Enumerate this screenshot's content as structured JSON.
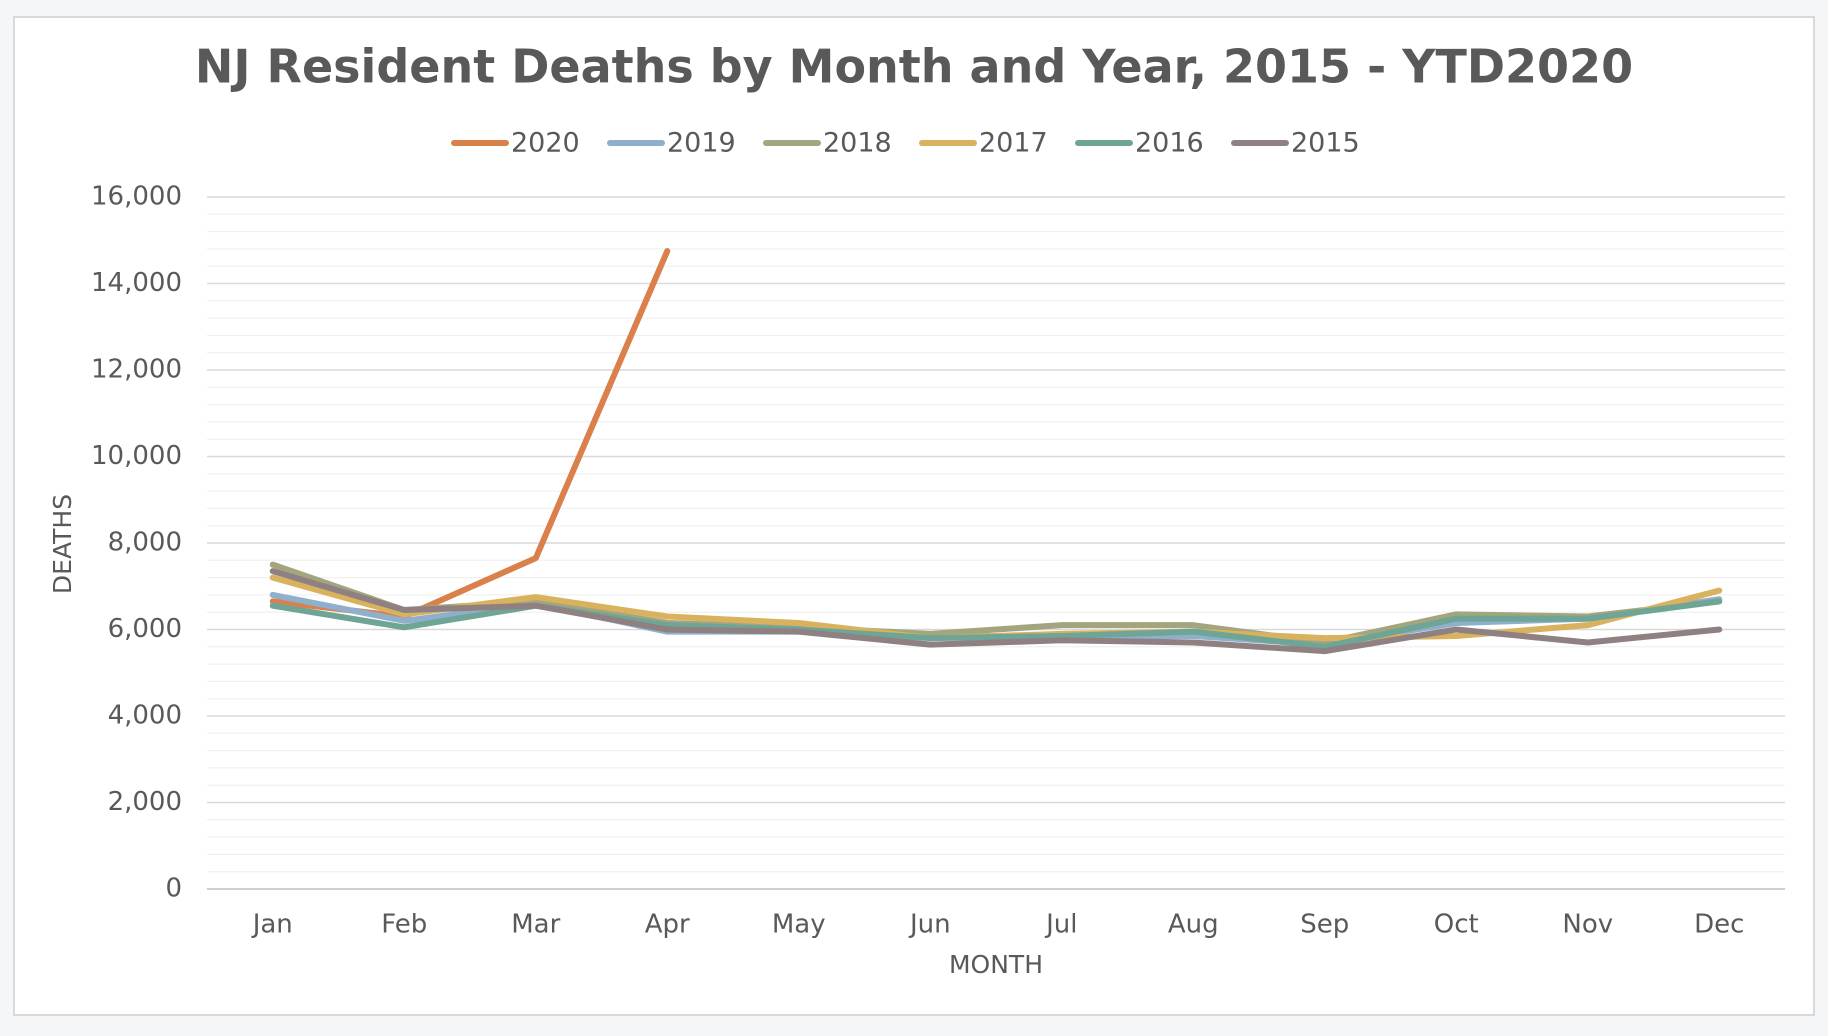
{
  "chart_data": {
    "type": "line",
    "title": "NJ Resident Deaths by Month and Year, 2015 - YTD2020",
    "x_label": "MONTH",
    "y_label": "DEATHS",
    "categories": [
      "Jan",
      "Feb",
      "Mar",
      "Apr",
      "May",
      "Jun",
      "Jul",
      "Aug",
      "Sep",
      "Oct",
      "Nov",
      "Dec"
    ],
    "series": [
      {
        "name": "2020",
        "color": "#d9804b",
        "values": [
          6650,
          6300,
          7650,
          14750,
          null,
          null,
          null,
          null,
          null,
          null,
          null,
          null
        ]
      },
      {
        "name": "2019",
        "color": "#8fb0cc",
        "values": [
          6800,
          6200,
          6600,
          5950,
          5950,
          5850,
          5850,
          5850,
          5650,
          6150,
          6250,
          6700
        ]
      },
      {
        "name": "2018",
        "color": "#a2a57e",
        "values": [
          7500,
          6450,
          6650,
          6150,
          6050,
          5900,
          6100,
          6100,
          5700,
          6350,
          6300,
          6650
        ]
      },
      {
        "name": "2017",
        "color": "#d9b25f",
        "values": [
          7200,
          6350,
          6750,
          6300,
          6150,
          5800,
          5900,
          5950,
          5800,
          5850,
          6100,
          6900
        ]
      },
      {
        "name": "2016",
        "color": "#6fa596",
        "values": [
          6550,
          6050,
          6550,
          6100,
          6000,
          5800,
          5850,
          5950,
          5600,
          6250,
          6250,
          6650
        ]
      },
      {
        "name": "2015",
        "color": "#8f8182",
        "values": [
          7350,
          6450,
          6550,
          6000,
          5950,
          5650,
          5750,
          5700,
          5500,
          6000,
          5700,
          6000
        ]
      }
    ],
    "ylim": [
      0,
      16000
    ],
    "yticks": [
      0,
      {
        "value": 2000,
        "label": "2,000"
      },
      {
        "value": 4000,
        "label": "4,000"
      },
      {
        "value": 6000,
        "label": "6,000"
      },
      {
        "value": 8000,
        "label": "8,000"
      },
      {
        "value": 10000,
        "label": "10,000"
      },
      {
        "value": 12000,
        "label": "12,000"
      },
      {
        "value": 14000,
        "label": "14,000"
      },
      {
        "value": 16000,
        "label": "16,000"
      }
    ],
    "minor_yticks": [
      400,
      800,
      1200,
      1600,
      2400,
      2800,
      3200,
      3600,
      4400,
      4800,
      5200,
      5600,
      6400,
      6800,
      7200,
      7600,
      8400,
      8800,
      9200,
      9600,
      10400,
      10800,
      11200,
      11600,
      12400,
      12800,
      13200,
      13600,
      14400,
      14800,
      15200,
      15600
    ],
    "grid": true,
    "legend": "top"
  }
}
